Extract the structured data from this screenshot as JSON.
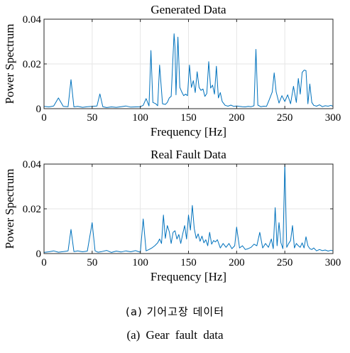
{
  "chart_data": [
    {
      "type": "line",
      "title": "Generated Data",
      "xlabel": "Frequency [Hz]",
      "ylabel": "Power Spectrum",
      "xlim": [
        0,
        300
      ],
      "ylim": [
        0,
        0.04
      ],
      "xticks": [
        "0",
        "50",
        "100",
        "150",
        "200",
        "250",
        "300"
      ],
      "yticks": [
        "0",
        "0.02",
        "0.04"
      ],
      "grid": true,
      "color": "#0072bd",
      "series": [
        {
          "x": [
            0,
            5,
            10,
            15,
            20,
            25,
            28,
            31,
            35,
            40,
            45,
            50,
            55,
            58,
            61,
            65,
            70,
            75,
            80,
            85,
            90,
            95,
            100,
            103,
            106,
            109,
            111,
            113,
            116,
            118,
            120,
            123,
            126,
            128,
            130,
            132,
            134,
            135,
            136,
            137,
            139,
            141,
            143,
            145,
            147,
            149,
            151,
            153,
            155,
            157,
            159,
            161,
            163,
            165,
            167,
            169,
            171,
            173,
            175,
            177,
            179,
            181,
            183,
            185,
            188,
            191,
            194,
            197,
            200,
            203,
            206,
            209,
            212,
            215,
            218,
            220,
            222,
            225,
            228,
            231,
            234,
            237,
            239,
            241,
            244,
            247,
            250,
            253,
            256,
            259,
            262,
            264,
            266,
            268,
            270,
            272,
            274,
            276,
            278,
            280,
            283,
            286,
            289,
            292,
            295,
            298,
            300
          ],
          "values": [
            0.001,
            0.0008,
            0.0012,
            0.0048,
            0.001,
            0.0009,
            0.013,
            0.0008,
            0.001,
            0.0006,
            0.0009,
            0.001,
            0.0012,
            0.0066,
            0.0009,
            0.0005,
            0.0008,
            0.0006,
            0.0009,
            0.0012,
            0.0007,
            0.0008,
            0.0009,
            0.0015,
            0.0045,
            0.0012,
            0.026,
            0.0028,
            0.0022,
            0.0013,
            0.0195,
            0.0022,
            0.0019,
            0.0028,
            0.0048,
            0.0055,
            0.024,
            0.0335,
            0.0275,
            0.0062,
            0.032,
            0.0095,
            0.0075,
            0.0058,
            0.0065,
            0.0058,
            0.0195,
            0.0095,
            0.0125,
            0.0072,
            0.0165,
            0.0095,
            0.0082,
            0.0088,
            0.0055,
            0.0068,
            0.021,
            0.0092,
            0.0105,
            0.0065,
            0.019,
            0.0048,
            0.0072,
            0.0032,
            0.0015,
            0.0011,
            0.0016,
            0.001,
            0.0012,
            0.001,
            0.0009,
            0.0008,
            0.001,
            0.0009,
            0.0013,
            0.0265,
            0.0016,
            0.0009,
            0.0011,
            0.001,
            0.0042,
            0.0075,
            0.016,
            0.0075,
            0.0025,
            0.0058,
            0.0032,
            0.0062,
            0.0022,
            0.01,
            0.0028,
            0.0135,
            0.0065,
            0.0162,
            0.0172,
            0.017,
            0.0022,
            0.011,
            0.0028,
            0.0015,
            0.0011,
            0.0017,
            0.0009,
            0.0013,
            0.0011,
            0.0015,
            0.001
          ]
        }
      ]
    },
    {
      "type": "line",
      "title": "Real Fault Data",
      "xlabel": "Frequency [Hz]",
      "ylabel": "Power Spectrum",
      "xlim": [
        0,
        300
      ],
      "ylim": [
        0,
        0.04
      ],
      "xticks": [
        "0",
        "50",
        "100",
        "150",
        "200",
        "250",
        "300"
      ],
      "yticks": [
        "0",
        "0.02",
        "0.04"
      ],
      "grid": true,
      "color": "#0072bd",
      "series": [
        {
          "x": [
            0,
            5,
            10,
            15,
            20,
            25,
            28,
            31,
            35,
            40,
            45,
            50,
            53,
            56,
            60,
            65,
            70,
            75,
            80,
            85,
            90,
            95,
            100,
            103,
            106,
            109,
            112,
            115,
            118,
            120,
            122,
            124,
            126,
            128,
            130,
            132,
            134,
            136,
            138,
            140,
            142,
            144,
            146,
            148,
            150,
            152,
            154,
            156,
            158,
            160,
            162,
            164,
            166,
            168,
            170,
            172,
            174,
            176,
            178,
            180,
            183,
            186,
            189,
            192,
            195,
            198,
            200,
            203,
            206,
            209,
            212,
            215,
            218,
            221,
            224,
            227,
            230,
            233,
            236,
            238,
            240,
            242,
            244,
            246,
            248,
            250,
            252,
            254,
            256,
            258,
            260,
            262,
            264,
            266,
            268,
            270,
            272,
            274,
            276,
            278,
            280,
            283,
            286,
            289,
            292,
            295,
            298,
            300
          ],
          "values": [
            0.0005,
            0.0008,
            0.0012,
            0.0006,
            0.0009,
            0.0012,
            0.0108,
            0.0009,
            0.0012,
            0.0008,
            0.0011,
            0.0138,
            0.0012,
            0.0006,
            0.0009,
            0.0014,
            0.0005,
            0.0011,
            0.0007,
            0.0012,
            0.0008,
            0.0013,
            0.0006,
            0.0155,
            0.0012,
            0.0018,
            0.0025,
            0.0035,
            0.0048,
            0.0065,
            0.0045,
            0.0172,
            0.0068,
            0.0125,
            0.0098,
            0.0045,
            0.0095,
            0.0102,
            0.0065,
            0.0085,
            0.0045,
            0.0088,
            0.0125,
            0.0065,
            0.0172,
            0.0105,
            0.0215,
            0.0112,
            0.0068,
            0.0088,
            0.0055,
            0.0078,
            0.0048,
            0.0062,
            0.0035,
            0.0095,
            0.0042,
            0.0058,
            0.0052,
            0.0062,
            0.0025,
            0.0045,
            0.0028,
            0.0045,
            0.0022,
            0.0035,
            0.0118,
            0.0025,
            0.0035,
            0.0018,
            0.0022,
            0.0028,
            0.0042,
            0.0035,
            0.0095,
            0.0025,
            0.0045,
            0.0028,
            0.0065,
            0.0022,
            0.0205,
            0.0035,
            0.0138,
            0.0048,
            0.0022,
            0.04,
            0.0028,
            0.0045,
            0.0058,
            0.0125,
            0.0025,
            0.0045,
            0.0035,
            0.0028,
            0.0048,
            0.0025,
            0.0075,
            0.0035,
            0.0022,
            0.0018,
            0.0025,
            0.0012,
            0.0018,
            0.0013,
            0.0016,
            0.0011,
            0.0015,
            0.0012
          ]
        }
      ]
    }
  ],
  "captions": {
    "korean": "(a) 기어고장 데이터",
    "english": "(a) Gear fault data"
  }
}
